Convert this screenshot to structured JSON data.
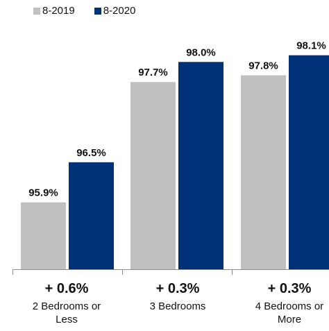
{
  "legend": [
    {
      "label": "8-2019",
      "color": "#c0c0c0"
    },
    {
      "label": "8-2020",
      "color": "#003278"
    }
  ],
  "chart_data": {
    "type": "bar",
    "categories": [
      {
        "lines": [
          "2 Bedrooms or",
          "Less"
        ],
        "change": "+ 0.6%"
      },
      {
        "lines": [
          "3 Bedrooms"
        ],
        "change": "+ 0.3%"
      },
      {
        "lines": [
          "4 Bedrooms or",
          "More"
        ],
        "change": "+ 0.3%"
      }
    ],
    "series": [
      {
        "name": "8-2019",
        "color": "#c0c0c0",
        "values": [
          95.9,
          97.7,
          97.8
        ],
        "labels": [
          "95.9%",
          "97.7%",
          "97.8%"
        ]
      },
      {
        "name": "8-2020",
        "color": "#003278",
        "values": [
          96.5,
          98.0,
          98.1
        ],
        "labels": [
          "96.5%",
          "98.0%",
          "98.1%"
        ]
      }
    ],
    "ylim": [
      94.9,
      98.2
    ],
    "grid": false,
    "legend_position": "top-left"
  }
}
